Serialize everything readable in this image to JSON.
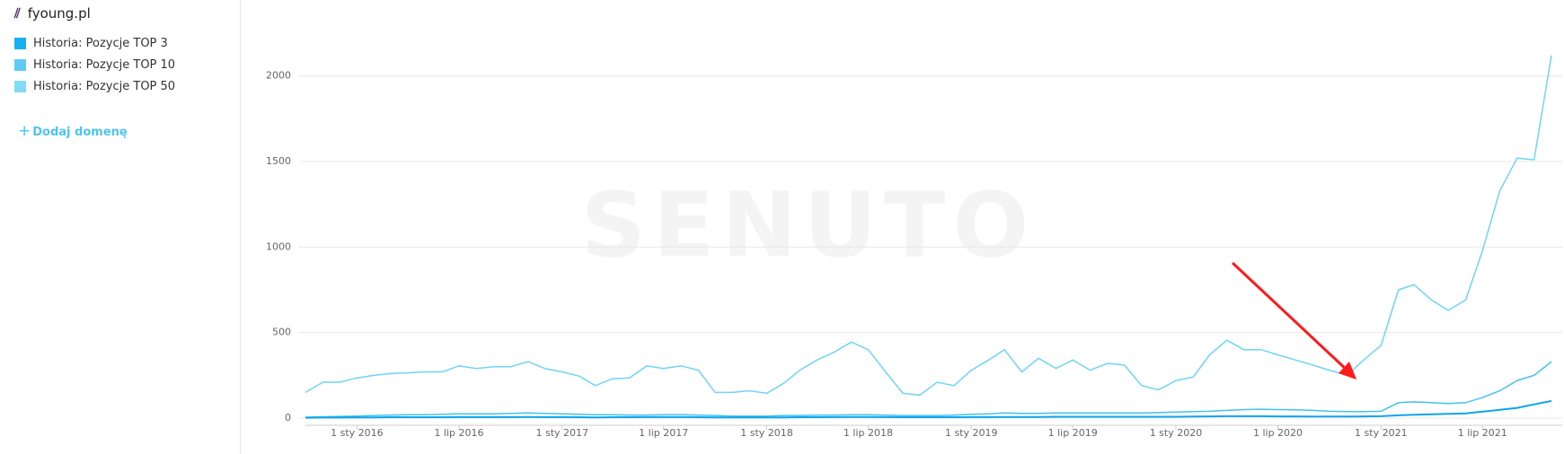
{
  "domain": "fyoung.pl",
  "add_domain": "Dodaj domenę",
  "watermark": "SENUTO",
  "chart_data": {
    "type": "line",
    "x": [
      "2015-10-01",
      "2015-11-01",
      "2015-12-01",
      "2016-01-01",
      "2016-02-01",
      "2016-03-01",
      "2016-04-01",
      "2016-05-01",
      "2016-06-01",
      "2016-07-01",
      "2016-08-01",
      "2016-09-01",
      "2016-10-01",
      "2016-11-01",
      "2016-12-01",
      "2017-01-01",
      "2017-02-01",
      "2017-03-01",
      "2017-04-01",
      "2017-05-01",
      "2017-06-01",
      "2017-07-01",
      "2017-08-01",
      "2017-09-01",
      "2017-10-01",
      "2017-11-01",
      "2017-12-01",
      "2018-01-01",
      "2018-02-01",
      "2018-03-01",
      "2018-04-01",
      "2018-05-01",
      "2018-06-01",
      "2018-07-01",
      "2018-08-01",
      "2018-09-01",
      "2018-10-01",
      "2018-11-01",
      "2018-12-01",
      "2019-01-01",
      "2019-02-01",
      "2019-03-01",
      "2019-04-01",
      "2019-05-01",
      "2019-06-01",
      "2019-07-01",
      "2019-08-01",
      "2019-09-01",
      "2019-10-01",
      "2019-11-01",
      "2019-12-01",
      "2020-01-01",
      "2020-02-01",
      "2020-03-01",
      "2020-04-01",
      "2020-05-01",
      "2020-06-01",
      "2020-07-01",
      "2020-08-01",
      "2020-09-01",
      "2020-10-01",
      "2020-11-01",
      "2020-12-01",
      "2021-01-01",
      "2021-02-01",
      "2021-03-01",
      "2021-04-01",
      "2021-05-01",
      "2021-06-01",
      "2021-07-01",
      "2021-08-01",
      "2021-09-01",
      "2021-10-01",
      "2021-11-01"
    ],
    "series": [
      {
        "name": "Historia: Pozycje TOP 3",
        "color": "#0ea5ea",
        "legend_color": "#14b1f2",
        "values": [
          2,
          3,
          3,
          4,
          4,
          5,
          5,
          5,
          5,
          6,
          6,
          6,
          6,
          7,
          6,
          6,
          5,
          4,
          5,
          5,
          6,
          6,
          6,
          5,
          4,
          4,
          4,
          4,
          4,
          5,
          5,
          6,
          7,
          7,
          6,
          5,
          5,
          5,
          5,
          6,
          6,
          7,
          7,
          7,
          8,
          8,
          8,
          8,
          8,
          8,
          8,
          8,
          9,
          10,
          11,
          11,
          11,
          10,
          10,
          9,
          9,
          9,
          10,
          11,
          16,
          20,
          22,
          25,
          28,
          38,
          48,
          60,
          80,
          100
        ]
      },
      {
        "name": "Historia: Pozycje TOP 10",
        "color": "#45c1ee",
        "legend_color": "#5fcbf4",
        "values": [
          5,
          8,
          10,
          12,
          15,
          18,
          20,
          20,
          22,
          25,
          25,
          25,
          28,
          30,
          28,
          25,
          22,
          20,
          20,
          18,
          18,
          20,
          20,
          18,
          15,
          12,
          12,
          12,
          15,
          15,
          18,
          18,
          20,
          20,
          18,
          15,
          15,
          15,
          18,
          22,
          25,
          30,
          28,
          28,
          30,
          30,
          30,
          30,
          30,
          30,
          32,
          35,
          38,
          40,
          45,
          50,
          52,
          50,
          48,
          45,
          40,
          38,
          38,
          40,
          90,
          95,
          90,
          85,
          90,
          120,
          160,
          220,
          250,
          330
        ]
      },
      {
        "name": "Historia: Pozycje TOP 50",
        "color": "#6fd4f7",
        "legend_color": "#80daf8",
        "values": [
          150,
          210,
          210,
          235,
          250,
          260,
          265,
          270,
          270,
          305,
          290,
          300,
          300,
          330,
          290,
          270,
          245,
          190,
          230,
          235,
          305,
          290,
          305,
          280,
          150,
          150,
          160,
          145,
          205,
          280,
          340,
          385,
          445,
          400,
          270,
          145,
          135,
          210,
          190,
          280,
          340,
          400,
          270,
          350,
          290,
          340,
          280,
          320,
          310,
          190,
          165,
          220,
          240,
          370,
          455,
          400,
          400,
          370,
          340,
          310,
          280,
          250,
          340,
          425,
          750,
          780,
          690,
          630,
          690,
          980,
          1330,
          1520,
          1510,
          2120
        ]
      }
    ],
    "xlim": [
      "2015-10-01",
      "2021-11-01"
    ],
    "xticks": [
      {
        "value": "2016-01-01",
        "label": "1 sty 2016"
      },
      {
        "value": "2016-07-01",
        "label": "1 lip 2016"
      },
      {
        "value": "2017-01-01",
        "label": "1 sty 2017"
      },
      {
        "value": "2017-07-01",
        "label": "1 lip 2017"
      },
      {
        "value": "2018-01-01",
        "label": "1 sty 2018"
      },
      {
        "value": "2018-07-01",
        "label": "1 lip 2018"
      },
      {
        "value": "2019-01-01",
        "label": "1 sty 2019"
      },
      {
        "value": "2019-07-01",
        "label": "1 lip 2019"
      },
      {
        "value": "2020-01-01",
        "label": "1 sty 2020"
      },
      {
        "value": "2020-07-01",
        "label": "1 lip 2020"
      },
      {
        "value": "2021-01-01",
        "label": "1 sty 2021"
      },
      {
        "value": "2021-07-01",
        "label": "1 lip 2021"
      }
    ],
    "ylim": [
      0,
      2250
    ],
    "yticks": [
      0,
      500,
      1000,
      1500,
      2000
    ],
    "grid": true
  }
}
